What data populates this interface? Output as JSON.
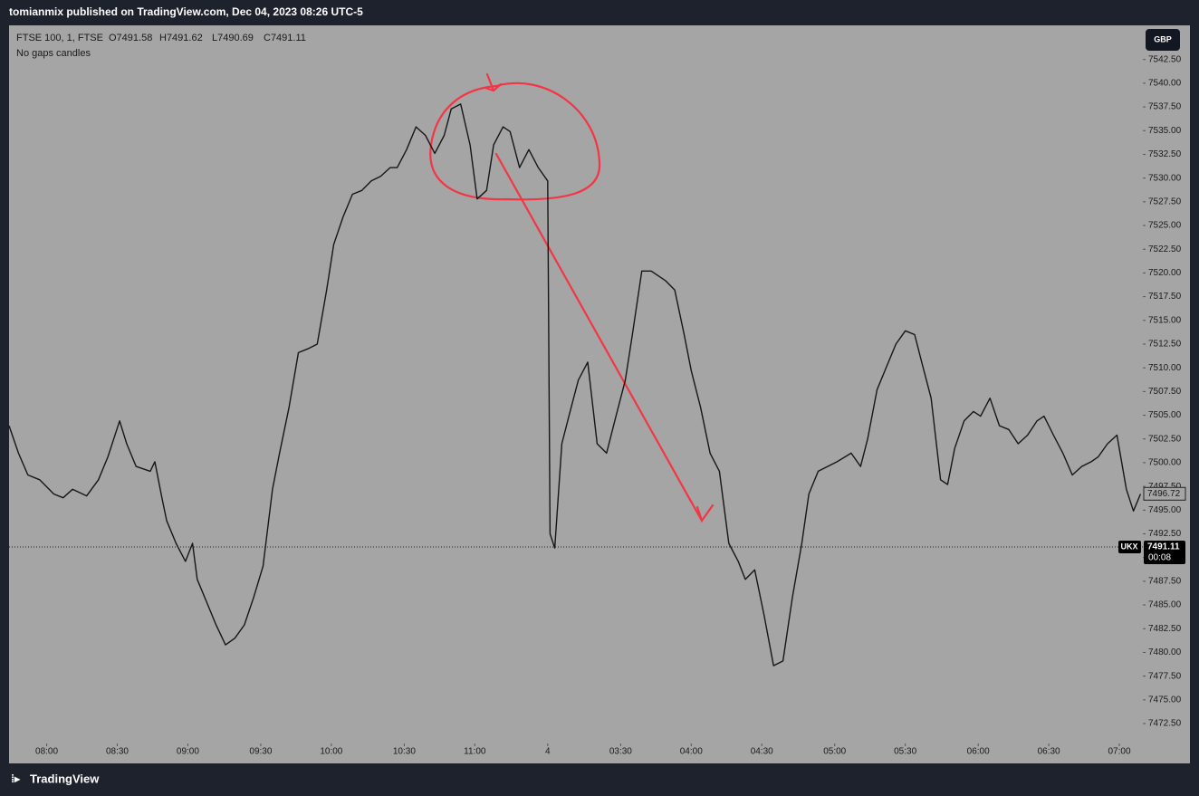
{
  "header": {
    "publisher": "tomianmix published on TradingView.com, Dec 04, 2023 08:26 UTC-5"
  },
  "footer": {
    "brand": "TradingView"
  },
  "chart_data": {
    "type": "line",
    "symbol": "FTSE 100, 1, FTSE",
    "ohlc": [
      "O7491.58",
      "H7491.62",
      "L7490.69",
      "C7491.11"
    ],
    "subtitle": "No gaps candles",
    "currency": "GBP",
    "ticker": "UKX",
    "countdown": "00:08",
    "last_price": 7491.11,
    "marker_price": 7496.72,
    "x": [
      0,
      4,
      8,
      13,
      19,
      23,
      27,
      33,
      38,
      42,
      47,
      50,
      54,
      60,
      62,
      65,
      67,
      71,
      75,
      78,
      80,
      84,
      88,
      92,
      96,
      100,
      104,
      108,
      112,
      115,
      119,
      123,
      127,
      131,
      135,
      138,
      142,
      146,
      150,
      154,
      158,
      162,
      165,
      169,
      173,
      177,
      181,
      185,
      188,
      192,
      196,
      199,
      203,
      206,
      210,
      213,
      217,
      221,
      225,
      229,
      230,
      232,
      235,
      238,
      242,
      246,
      250,
      254,
      258,
      262,
      265,
      269,
      273,
      279,
      283,
      287,
      290,
      294,
      298,
      302,
      306,
      310,
      313,
      317,
      321,
      325,
      329,
      333,
      337,
      340,
      344,
      348,
      352,
      358,
      362,
      365,
      369,
      373,
      377,
      381,
      385,
      388,
      392,
      396,
      399,
      402,
      406,
      410,
      413,
      417,
      421,
      425,
      429,
      433,
      437,
      440,
      444,
      448,
      452,
      456,
      460,
      463,
      467,
      471,
      475,
      478,
      481
    ],
    "series": [
      {
        "color": "#161616",
        "values": [
          7503.9,
          7501.0,
          7498.7,
          7498.2,
          7496.7,
          7496.3,
          7497.2,
          7496.5,
          7498.2,
          7500.6,
          7504.4,
          7502.0,
          7499.6,
          7499.1,
          7500.1,
          7496.3,
          7493.9,
          7491.5,
          7489.6,
          7491.5,
          7487.7,
          7485.3,
          7482.9,
          7480.8,
          7481.5,
          7482.9,
          7485.8,
          7489.1,
          7497.2,
          7501.0,
          7505.8,
          7511.6,
          7512.0,
          7512.5,
          7518.2,
          7523.0,
          7525.9,
          7528.3,
          7528.7,
          7529.7,
          7530.2,
          7531.1,
          7531.1,
          7533.0,
          7535.4,
          7534.5,
          7532.6,
          7534.5,
          7537.3,
          7537.8,
          7533.5,
          7527.8,
          7528.7,
          7533.5,
          7535.4,
          7534.9,
          7531.1,
          7533.0,
          7531.1,
          7529.7,
          7492.5,
          7491.0,
          7502.0,
          7504.9,
          7508.7,
          7510.6,
          7502.0,
          7501.0,
          7504.9,
          7508.7,
          7513.5,
          7520.2,
          7520.2,
          7519.2,
          7518.2,
          7513.5,
          7509.7,
          7505.8,
          7501.0,
          7499.1,
          7491.5,
          7489.6,
          7487.7,
          7488.7,
          7483.9,
          7478.6,
          7479.1,
          7485.8,
          7491.5,
          7496.7,
          7499.1,
          7499.6,
          7500.1,
          7501.0,
          7499.6,
          7502.5,
          7507.7,
          7510.1,
          7512.5,
          7513.9,
          7513.5,
          7510.6,
          7506.8,
          7498.2,
          7497.7,
          7501.5,
          7504.4,
          7505.4,
          7504.9,
          7506.8,
          7503.9,
          7503.5,
          7502.0,
          7502.9,
          7504.4,
          7504.9,
          7502.9,
          7501.0,
          7498.7,
          7499.6,
          7500.1,
          7500.6,
          7502.0,
          7502.9,
          7497.2,
          7494.9,
          7496.7
        ]
      }
    ],
    "xlim": [
      0,
      482
    ],
    "xticks": [
      {
        "value": 16,
        "label": "08:00"
      },
      {
        "value": 46,
        "label": "08:30"
      },
      {
        "value": 76,
        "label": "09:00"
      },
      {
        "value": 107,
        "label": "09:30"
      },
      {
        "value": 137,
        "label": "10:00"
      },
      {
        "value": 168,
        "label": "10:30"
      },
      {
        "value": 198,
        "label": "11:00"
      },
      {
        "value": 229,
        "label": "4"
      },
      {
        "value": 260,
        "label": "03:30"
      },
      {
        "value": 290,
        "label": "04:00"
      },
      {
        "value": 320,
        "label": "04:30"
      },
      {
        "value": 351,
        "label": "05:00"
      },
      {
        "value": 381,
        "label": "05:30"
      },
      {
        "value": 412,
        "label": "06:00"
      },
      {
        "value": 442,
        "label": "06:30"
      },
      {
        "value": 472,
        "label": "07:00"
      }
    ],
    "ylim": [
      7468.3,
      7546.1
    ],
    "yticks": [
      {
        "value": 7472.5,
        "label": "7472.50"
      },
      {
        "value": 7475,
        "label": "7475.00"
      },
      {
        "value": 7477.5,
        "label": "7477.50"
      },
      {
        "value": 7480,
        "label": "7480.00"
      },
      {
        "value": 7482.5,
        "label": "7482.50"
      },
      {
        "value": 7485,
        "label": "7485.00"
      },
      {
        "value": 7487.5,
        "label": "7487.50"
      },
      {
        "value": 7490,
        "label": "7490.00"
      },
      {
        "value": 7492.5,
        "label": "7492.50"
      },
      {
        "value": 7495,
        "label": "7495.00"
      },
      {
        "value": 7497.5,
        "label": "7497.50"
      },
      {
        "value": 7500,
        "label": "7500.00"
      },
      {
        "value": 7502.5,
        "label": "7502.50"
      },
      {
        "value": 7505,
        "label": "7505.00"
      },
      {
        "value": 7507.5,
        "label": "7507.50"
      },
      {
        "value": 7510,
        "label": "7510.00"
      },
      {
        "value": 7512.5,
        "label": "7512.50"
      },
      {
        "value": 7515,
        "label": "7515.00"
      },
      {
        "value": 7517.5,
        "label": "7517.50"
      },
      {
        "value": 7520,
        "label": "7520.00"
      },
      {
        "value": 7522.5,
        "label": "7522.50"
      },
      {
        "value": 7525,
        "label": "7525.00"
      },
      {
        "value": 7527.5,
        "label": "7527.50"
      },
      {
        "value": 7530,
        "label": "7530.00"
      },
      {
        "value": 7532.5,
        "label": "7532.50"
      },
      {
        "value": 7535,
        "label": "7535.00"
      },
      {
        "value": 7537.5,
        "label": "7537.50"
      },
      {
        "value": 7540,
        "label": "7540.00"
      },
      {
        "value": 7542.5,
        "label": "7542.50"
      }
    ]
  }
}
